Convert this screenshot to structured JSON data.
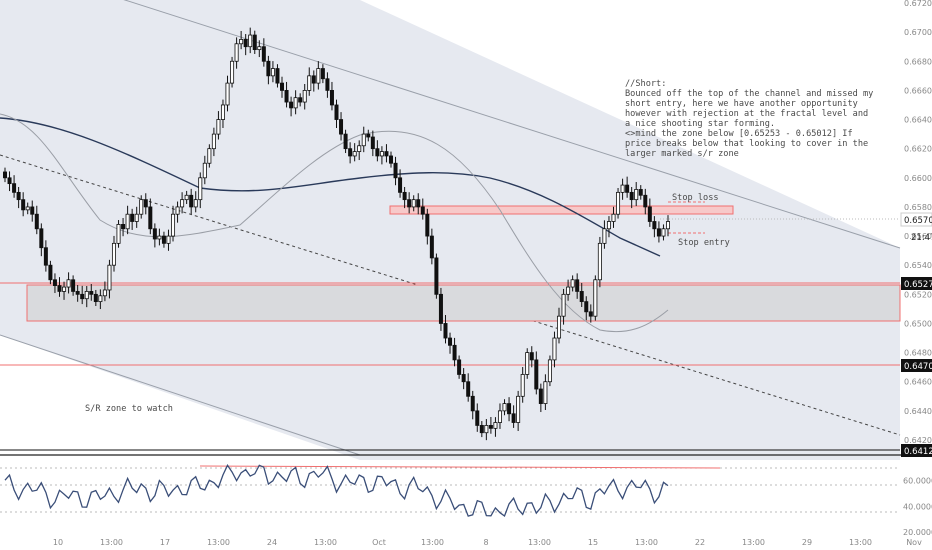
{
  "colors": {
    "channel_fill": "#e6e9f0",
    "zone_fill": "#d9dadd",
    "line_red": "#f07070",
    "candle": "#111111",
    "sma_long": "#2a3a5a",
    "sma_short": "#9a9ea6",
    "rsi_line": "#3a4e78",
    "level_tag_bg": "#111111"
  },
  "price_axis": {
    "ticks": [
      "0.67200",
      "0.67000",
      "0.66800",
      "0.66600",
      "0.66400",
      "0.66200",
      "0.66000",
      "0.65800",
      "0.65600",
      "0.65400",
      "0.65200",
      "0.65000",
      "0.64800",
      "0.64600",
      "0.64400",
      "0.64200"
    ],
    "tags": {
      "current_price": "0.65704",
      "countdown": "21:47",
      "level_1": "0.65279",
      "level_2": "0.64708",
      "level_3": "0.64127"
    }
  },
  "rsi_axis": {
    "ticks": [
      "60.0000",
      "40.0000",
      "20.0000"
    ]
  },
  "time_axis": {
    "labels": [
      "10",
      "13:00",
      "17",
      "13:00",
      "24",
      "13:00",
      "Oct",
      "13:00",
      "8",
      "13:00",
      "15",
      "13:00",
      "22",
      "13:00",
      "29",
      "13:00",
      "Nov"
    ]
  },
  "annotations": {
    "note_lines": [
      "//Short:",
      "Bounced off the top of the channel and missed my",
      "short entry, here we have another opportunity",
      "however with rejection at the fractal level and",
      "a nice shooting star forming.",
      "<>mind the zone below [0.65253 - 0.65012] If",
      "price breaks below that looking to cover in the",
      "larger marked s/r zone"
    ],
    "stop_loss": "Stop loss",
    "stop_entry": "Stop entry",
    "sr_zone": "S/R  zone to watch"
  },
  "chart_data": {
    "type": "candlestick",
    "instrument_price_range": [
      0.6412,
      0.672
    ],
    "levels": [
      0.65279,
      0.64708,
      0.64127
    ],
    "zone": [
      0.65012,
      0.65253
    ],
    "stop_loss_zone": [
      0.6576,
      0.6583
    ],
    "current_price": 0.65704,
    "closes": [
      0.66,
      0.6596,
      0.659,
      0.6585,
      0.6578,
      0.658,
      0.6575,
      0.6565,
      0.6552,
      0.654,
      0.653,
      0.6526,
      0.6522,
      0.6525,
      0.653,
      0.6522,
      0.652,
      0.6517,
      0.6522,
      0.652,
      0.6515,
      0.6519,
      0.6523,
      0.654,
      0.6555,
      0.6568,
      0.6565,
      0.6575,
      0.657,
      0.6575,
      0.6585,
      0.658,
      0.6565,
      0.6558,
      0.656,
      0.6555,
      0.656,
      0.6575,
      0.658,
      0.6585,
      0.6588,
      0.658,
      0.6585,
      0.66,
      0.661,
      0.662,
      0.663,
      0.664,
      0.665,
      0.6665,
      0.668,
      0.6692,
      0.6695,
      0.669,
      0.6698,
      0.6688,
      0.669,
      0.668,
      0.667,
      0.6675,
      0.6665,
      0.666,
      0.6652,
      0.6648,
      0.6655,
      0.6652,
      0.666,
      0.667,
      0.6665,
      0.6675,
      0.6668,
      0.666,
      0.665,
      0.664,
      0.663,
      0.662,
      0.6615,
      0.6618,
      0.6622,
      0.663,
      0.6628,
      0.662,
      0.6615,
      0.6618,
      0.6615,
      0.661,
      0.66,
      0.659,
      0.6585,
      0.658,
      0.6585,
      0.658,
      0.6575,
      0.656,
      0.6545,
      0.652,
      0.65,
      0.649,
      0.6485,
      0.6475,
      0.6465,
      0.646,
      0.645,
      0.644,
      0.643,
      0.6425,
      0.643,
      0.6428,
      0.6432,
      0.644,
      0.6445,
      0.6438,
      0.6432,
      0.645,
      0.6465,
      0.648,
      0.6475,
      0.6455,
      0.6445,
      0.646,
      0.6475,
      0.649,
      0.6505,
      0.652,
      0.6525,
      0.653,
      0.6522,
      0.6515,
      0.6508,
      0.6505,
      0.653,
      0.6555,
      0.6565,
      0.657,
      0.6575,
      0.659,
      0.6595,
      0.659,
      0.6585,
      0.6592,
      0.6588,
      0.658,
      0.657,
      0.6565,
      0.656,
      0.6565,
      0.657
    ]
  }
}
